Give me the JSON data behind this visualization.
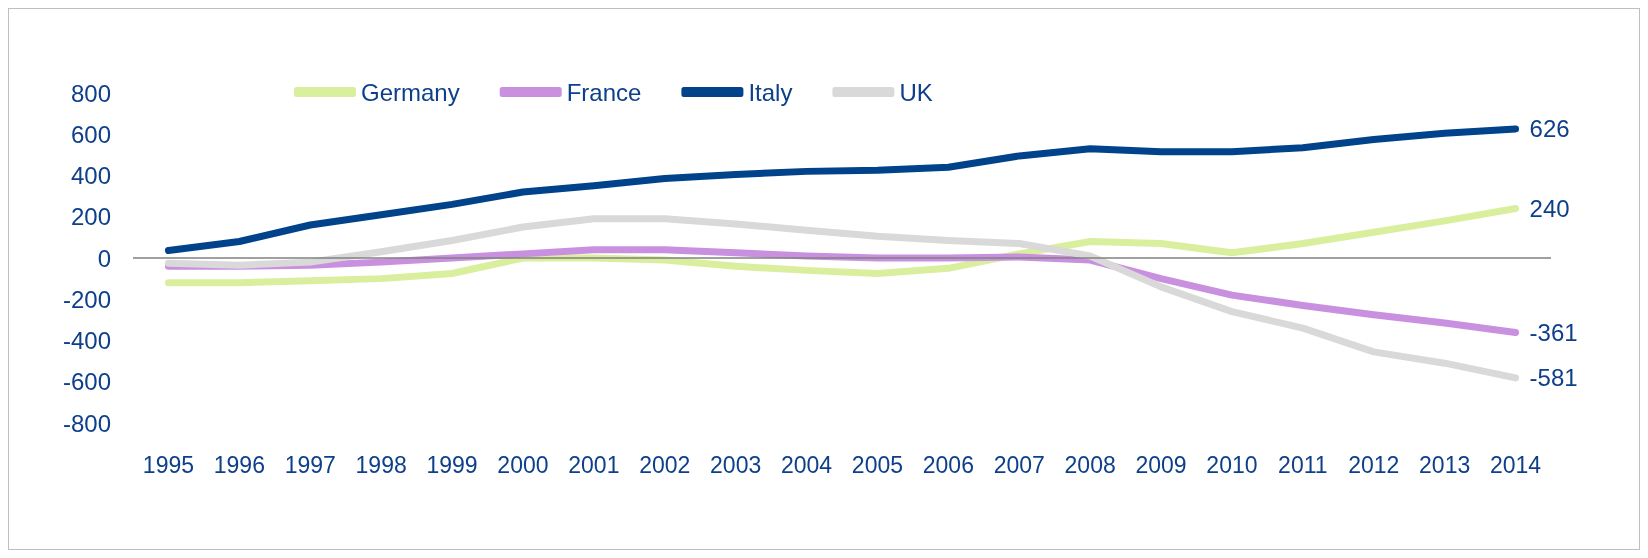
{
  "chart_data": {
    "type": "line",
    "categories": [
      "1995",
      "1996",
      "1997",
      "1998",
      "1999",
      "2000",
      "2001",
      "2002",
      "2003",
      "2004",
      "2005",
      "2006",
      "2007",
      "2008",
      "2009",
      "2010",
      "2011",
      "2012",
      "2013",
      "2014"
    ],
    "series": [
      {
        "name": "Germany",
        "color": "#d9ef9e",
        "values": [
          -120,
          -120,
          -110,
          -100,
          -75,
          0,
          0,
          -10,
          -40,
          -60,
          -75,
          -50,
          20,
          80,
          70,
          25,
          70,
          125,
          180,
          240
        ],
        "value_labels": [
          null,
          null,
          null,
          null,
          null,
          null,
          null,
          null,
          null,
          null,
          null,
          null,
          null,
          null,
          null,
          null,
          null,
          null,
          null,
          "240"
        ]
      },
      {
        "name": "France",
        "color": "#c990e0",
        "values": [
          -40,
          -40,
          -35,
          -20,
          0,
          20,
          40,
          40,
          25,
          10,
          0,
          0,
          5,
          -10,
          -100,
          -180,
          -230,
          -275,
          -315,
          -361
        ],
        "value_labels": [
          null,
          null,
          null,
          null,
          null,
          null,
          null,
          null,
          null,
          null,
          null,
          null,
          null,
          null,
          null,
          null,
          null,
          null,
          null,
          "-361"
        ]
      },
      {
        "name": "Italy",
        "color": "#00438b",
        "values": [
          36,
          80,
          160,
          210,
          260,
          320,
          350,
          385,
          405,
          420,
          425,
          440,
          495,
          530,
          515,
          515,
          535,
          575,
          605,
          626
        ],
        "value_labels": [
          null,
          null,
          null,
          null,
          null,
          null,
          null,
          null,
          null,
          null,
          null,
          null,
          null,
          null,
          null,
          null,
          null,
          null,
          null,
          "626"
        ]
      },
      {
        "name": "UK",
        "color": "#d9d9d9",
        "values": [
          -25,
          -35,
          -20,
          30,
          85,
          150,
          190,
          190,
          165,
          135,
          105,
          85,
          70,
          10,
          -140,
          -260,
          -340,
          -455,
          -510,
          -581
        ],
        "value_labels": [
          null,
          null,
          null,
          null,
          null,
          null,
          null,
          null,
          null,
          null,
          null,
          null,
          null,
          null,
          null,
          null,
          null,
          null,
          null,
          "-581"
        ]
      }
    ],
    "ylim": [
      -800,
      800
    ],
    "yticks": [
      -800,
      -600,
      -400,
      -200,
      0,
      200,
      400,
      600,
      800
    ],
    "grid": false,
    "ref_lines": [
      {
        "axis": "y",
        "value": 0,
        "color": "#808080"
      }
    ],
    "legend": "top",
    "marker": "none",
    "line_style": "solid"
  }
}
